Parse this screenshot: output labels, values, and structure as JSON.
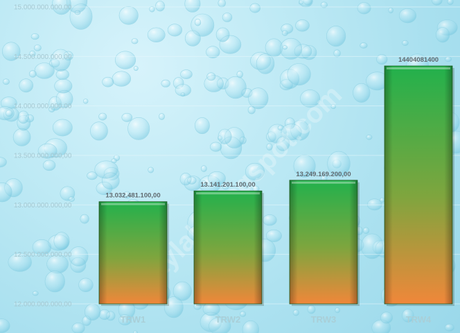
{
  "chart_data": {
    "type": "bar",
    "categories": [
      "TRW1",
      "TRW2",
      "TRW3",
      "TRW4"
    ],
    "values": [
      13032481100,
      13141201100,
      13249169200,
      14404081400
    ],
    "data_labels": [
      "13.032.481.100,00",
      "13.141.201.100,00",
      "13.249.169.200,00",
      "14404081400"
    ],
    "ylim": [
      12000000000,
      15000000000
    ],
    "y_ticks": [
      12000000000,
      12500000000,
      13000000000,
      13500000000,
      14000000000,
      14500000000,
      15000000000
    ],
    "y_tick_labels": [
      "12.000.000.000,00",
      "12.500.000.000,00",
      "13.000.000.000,00",
      "13.500.000.000,00",
      "14.000.000.000,00",
      "14.500.000.000,00",
      "15.000.000.000,00"
    ],
    "title": "",
    "xlabel": "",
    "ylabel": "",
    "grid": true,
    "legend": "none",
    "bar_gradient": {
      "top": "#22b14c",
      "bottom": "#f0873a"
    },
    "watermark": "playlab.blogspot.com"
  }
}
